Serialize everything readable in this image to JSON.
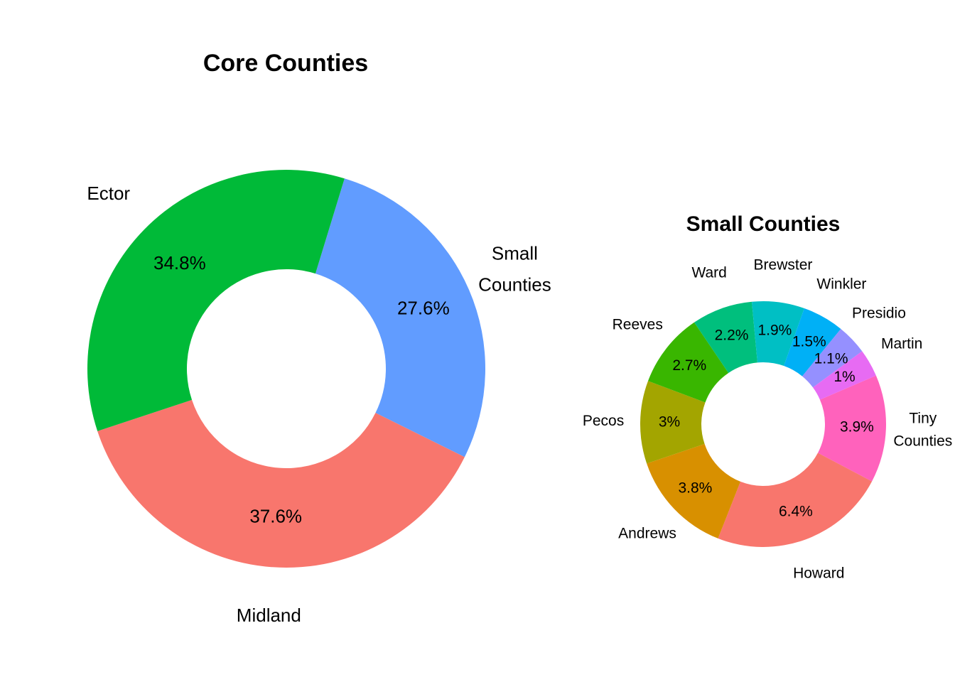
{
  "chart_data": [
    {
      "type": "pie",
      "title": "Core Counties",
      "categories": [
        "Small Counties",
        "Midland",
        "Ector"
      ],
      "values": [
        27.6,
        37.6,
        34.8
      ],
      "value_labels": [
        "27.6%",
        "37.6%",
        "34.8%"
      ],
      "colors": [
        "#619CFF",
        "#F8766D",
        "#00BA38"
      ]
    },
    {
      "type": "pie",
      "title": "Small Counties",
      "categories": [
        "Tiny Counties",
        "Howard",
        "Andrews",
        "Pecos",
        "Reeves",
        "Ward",
        "Brewster",
        "Winkler",
        "Presidio",
        "Martin"
      ],
      "values": [
        3.9,
        6.4,
        3.8,
        3,
        2.7,
        2.2,
        1.9,
        1.5,
        1.1,
        1
      ],
      "value_labels": [
        "3.9%",
        "6.4%",
        "3.8%",
        "3%",
        "2.7%",
        "2.2%",
        "1.9%",
        "1.5%",
        "1.1%",
        "1%"
      ],
      "colors": [
        "#FF62BC",
        "#F8766D",
        "#D89000",
        "#A3A500",
        "#39B600",
        "#00BF7D",
        "#00BFC4",
        "#00B0F6",
        "#9590FF",
        "#E76BF3"
      ]
    }
  ]
}
